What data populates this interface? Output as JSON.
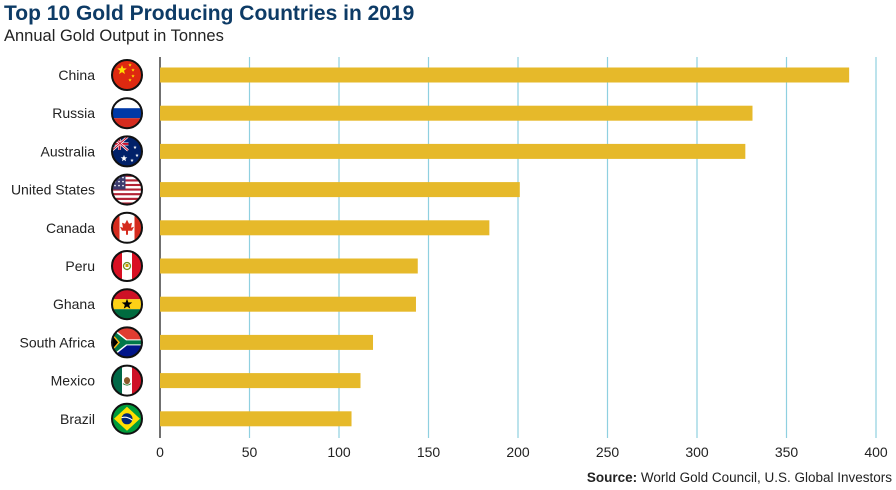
{
  "chart_data": {
    "type": "bar",
    "orientation": "horizontal",
    "title": "Top 10 Gold Producing Countries in 2019",
    "subtitle": "Annual Gold Output in Tonnes",
    "categories": [
      "China",
      "Russia",
      "Australia",
      "United States",
      "Canada",
      "Peru",
      "Ghana",
      "South Africa",
      "Mexico",
      "Brazil"
    ],
    "values": [
      385,
      331,
      327,
      201,
      184,
      144,
      143,
      119,
      112,
      107
    ],
    "xlim": [
      0,
      400
    ],
    "x_ticks": [
      "0",
      "50",
      "100",
      "150",
      "200",
      "250",
      "300",
      "350",
      "400"
    ],
    "grid": "vertical",
    "bar_color": "#e6b92a",
    "grid_color": "#8fd0e0",
    "title_color": "#0d3b66",
    "flag_icons": [
      "china-flag-icon",
      "russia-flag-icon",
      "australia-flag-icon",
      "united-states-flag-icon",
      "canada-flag-icon",
      "peru-flag-icon",
      "ghana-flag-icon",
      "south-africa-flag-icon",
      "mexico-flag-icon",
      "brazil-flag-icon"
    ]
  },
  "source": {
    "label": "Source:",
    "text": " World Gold Council, U.S. Global Investors"
  }
}
